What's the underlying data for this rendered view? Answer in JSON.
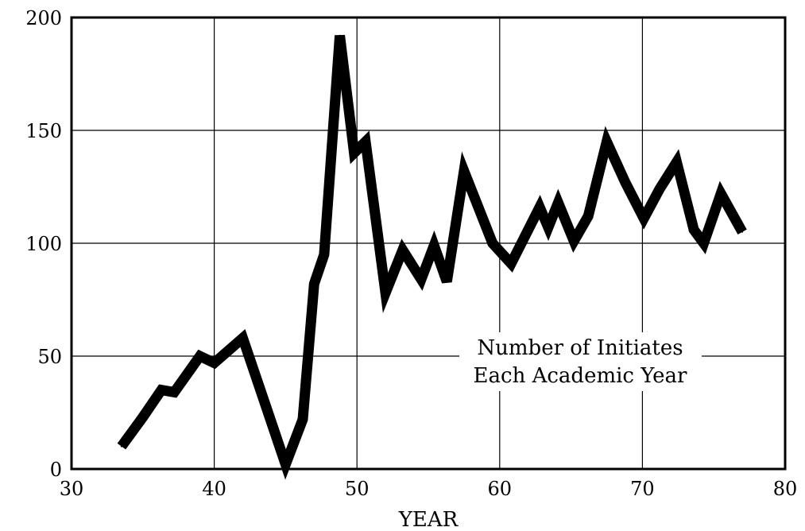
{
  "chart_data": {
    "type": "line",
    "xlabel": "YEAR",
    "ylabel": "",
    "xlim": [
      30,
      80
    ],
    "ylim": [
      0,
      200
    ],
    "xticks": [
      30,
      40,
      50,
      60,
      70,
      80
    ],
    "yticks": [
      0,
      50,
      100,
      150,
      200
    ],
    "grid": true,
    "annotation": [
      "Number of Initiates",
      "Each Academic Year"
    ],
    "series": [
      {
        "x": [
          33.5,
          35,
          36.3,
          37.2,
          39,
          40,
          42,
          43.5,
          45,
          46.2,
          47,
          47.7,
          48.8,
          49.8,
          50.6,
          52,
          53.2,
          54.5,
          55.4,
          56.3,
          57.5,
          59.5,
          60.8,
          62.8,
          63.4,
          64.1,
          65.2,
          66.2,
          67.5,
          68.8,
          70.1,
          71.2,
          72.4,
          73.6,
          74.3,
          75.5,
          77
        ],
        "y": [
          10,
          23,
          35,
          34,
          50,
          47,
          58,
          30,
          2,
          22,
          82,
          95,
          192,
          140,
          145,
          78,
          97,
          84,
          99,
          83,
          132,
          100,
          91,
          116,
          107,
          118,
          101,
          112,
          145,
          127,
          111,
          124,
          136,
          106,
          100,
          122,
          105
        ]
      }
    ]
  }
}
